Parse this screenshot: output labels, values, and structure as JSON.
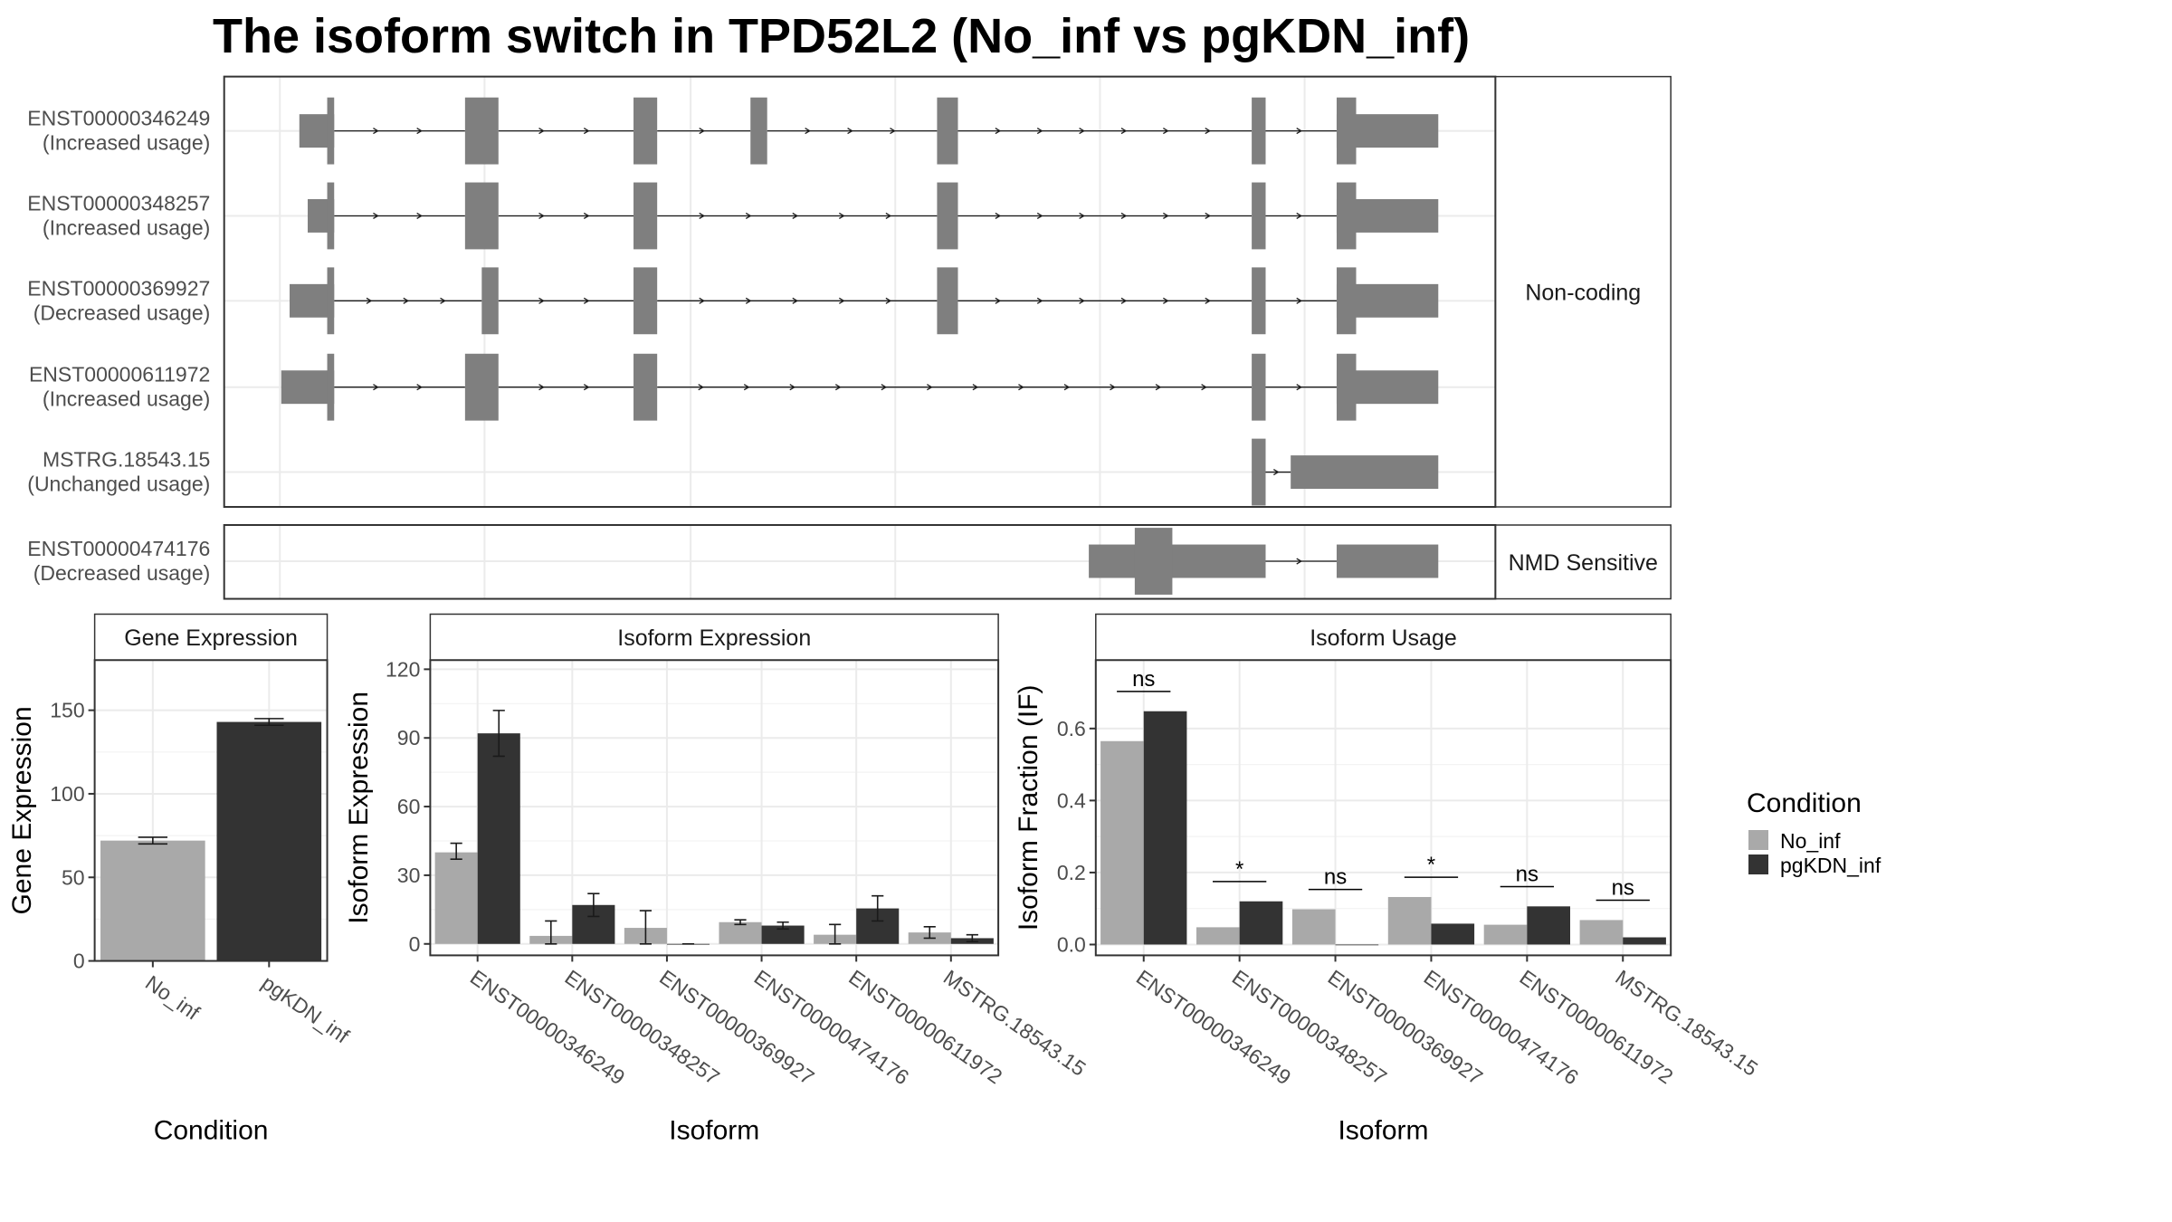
{
  "title": "The isoform switch in TPD52L2 (No_inf vs pgKDN_inf)",
  "colors": {
    "No_inf": "#a9a9a9",
    "pgKDN_inf": "#333333",
    "exon": "#7f7f7f"
  },
  "structure": {
    "groups": [
      {
        "label": "Non-coding",
        "transcripts": [
          {
            "id": "ENST00000346249",
            "status": "(Increased usage)",
            "exons": [
              [
                215,
                240,
                "t"
              ],
              [
                334,
                358,
                "w"
              ],
              [
                455,
                472,
                "w"
              ],
              [
                539,
                551,
                "w"
              ],
              [
                673,
                688,
                "w"
              ],
              [
                899,
                909,
                "w"
              ],
              [
                960,
                1033,
                "t"
              ]
            ],
            "splits": [
              [
                235,
                240
              ],
              [
                960,
                974
              ]
            ]
          },
          {
            "id": "ENST00000348257",
            "status": "(Increased usage)",
            "exons": [
              [
                221,
                240,
                "t"
              ],
              [
                334,
                358,
                "w"
              ],
              [
                455,
                472,
                "w"
              ],
              [
                673,
                688,
                "w"
              ],
              [
                899,
                909,
                "w"
              ],
              [
                960,
                1033,
                "t"
              ]
            ],
            "splits": [
              [
                235,
                240
              ],
              [
                960,
                974
              ]
            ]
          },
          {
            "id": "ENST00000369927",
            "status": "(Decreased usage)",
            "exons": [
              [
                208,
                240,
                "t"
              ],
              [
                346,
                358,
                "w"
              ],
              [
                455,
                472,
                "w"
              ],
              [
                673,
                688,
                "w"
              ],
              [
                899,
                909,
                "w"
              ],
              [
                960,
                1033,
                "t"
              ]
            ],
            "splits": [
              [
                235,
                240
              ],
              [
                960,
                974
              ]
            ]
          },
          {
            "id": "ENST00000611972",
            "status": "(Increased usage)",
            "exons": [
              [
                202,
                240,
                "t"
              ],
              [
                334,
                358,
                "w"
              ],
              [
                455,
                472,
                "w"
              ],
              [
                899,
                909,
                "w"
              ],
              [
                960,
                1033,
                "t"
              ]
            ],
            "splits": [
              [
                235,
                240
              ],
              [
                960,
                974
              ]
            ]
          },
          {
            "id": "MSTRG.18543.15",
            "status": "(Unchanged usage)",
            "exons": [
              [
                899,
                909,
                "w"
              ],
              [
                927,
                1033,
                "t"
              ]
            ],
            "splits": []
          }
        ]
      },
      {
        "label": "NMD Sensitive",
        "transcripts": [
          {
            "id": "ENST00000474176",
            "status": "(Decreased usage)",
            "exons": [
              [
                782,
                909,
                "t"
              ],
              [
                960,
                1033,
                "t"
              ]
            ],
            "splits": [
              [
                815,
                842
              ]
            ]
          }
        ]
      }
    ]
  },
  "legend": {
    "title": "Condition",
    "items": [
      "No_inf",
      "pgKDN_inf"
    ]
  },
  "chart_data": [
    {
      "type": "bar",
      "title": "Gene Expression",
      "xlabel": "Condition",
      "ylabel": "Gene Expression",
      "categories": [
        "No_inf",
        "pgKDN_inf"
      ],
      "values": [
        72,
        143
      ],
      "errors": [
        [
          70,
          74
        ],
        [
          141,
          145
        ]
      ],
      "ylim": [
        0,
        180
      ],
      "yticks": [
        0,
        50,
        100,
        150
      ]
    },
    {
      "type": "bar",
      "title": "Isoform Expression",
      "xlabel": "Isoform",
      "ylabel": "Isoform Expression",
      "categories": [
        "ENST00000346249",
        "ENST00000348257",
        "ENST00000369927",
        "ENST00000474176",
        "ENST00000611972",
        "MSTRG.18543.15"
      ],
      "series": [
        {
          "name": "No_inf",
          "values": [
            40,
            3.5,
            7,
            9.5,
            4,
            5
          ],
          "errors": [
            [
              37,
              44
            ],
            [
              0,
              10
            ],
            [
              0,
              14.5
            ],
            [
              8.5,
              10.5
            ],
            [
              0,
              8.5
            ],
            [
              2.5,
              7.5
            ]
          ]
        },
        {
          "name": "pgKDN_inf",
          "values": [
            92,
            17,
            0,
            8,
            15.5,
            2.5
          ],
          "errors": [
            [
              82,
              102
            ],
            [
              12,
              22
            ],
            [
              0,
              0
            ],
            [
              6.5,
              9.5
            ],
            [
              10,
              21
            ],
            [
              1,
              4
            ]
          ]
        }
      ],
      "ylim": [
        -5,
        124
      ],
      "yticks": [
        0,
        30,
        60,
        90,
        120
      ]
    },
    {
      "type": "bar",
      "title": "Isoform Usage",
      "xlabel": "Isoform",
      "ylabel": "Isoform Fraction (IF)",
      "categories": [
        "ENST00000346249",
        "ENST00000348257",
        "ENST00000369927",
        "ENST00000474176",
        "ENST00000611972",
        "MSTRG.18543.15"
      ],
      "series": [
        {
          "name": "No_inf",
          "values": [
            0.565,
            0.048,
            0.098,
            0.132,
            0.055,
            0.068
          ]
        },
        {
          "name": "pgKDN_inf",
          "values": [
            0.648,
            0.12,
            0.0,
            0.058,
            0.106,
            0.02
          ]
        }
      ],
      "significance": [
        "ns",
        "*",
        "ns",
        "*",
        "ns",
        "ns"
      ],
      "ylim": [
        -0.03,
        0.79
      ],
      "yticks": [
        "0.0",
        "0.2",
        "0.4",
        "0.6"
      ]
    }
  ]
}
